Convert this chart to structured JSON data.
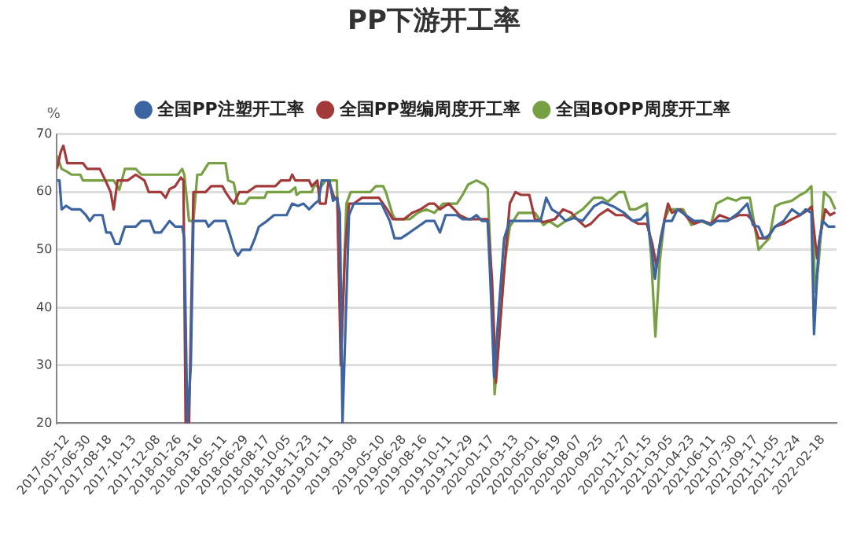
{
  "chart_data": {
    "type": "line",
    "title": "PP下游开工率",
    "ylabel": "%",
    "legend": "top",
    "grid": "y",
    "marker": "none",
    "line_style": "solid",
    "xlim": [
      "2017-04-18",
      "2022-03-22"
    ],
    "ylim": [
      20,
      70
    ],
    "yticks": [
      20,
      30,
      40,
      50,
      60,
      70
    ],
    "xticks": [
      "2017-05-12",
      "2017-06-30",
      "2017-08-18",
      "2017-10-13",
      "2017-12-08",
      "2018-01-26",
      "2018-03-16",
      "2018-05-11",
      "2018-06-29",
      "2018-08-17",
      "2018-10-05",
      "2018-11-23",
      "2019-01-11",
      "2019-03-08",
      "2019-05-10",
      "2019-06-28",
      "2019-08-16",
      "2019-10-11",
      "2019-11-29",
      "2020-01-17",
      "2020-03-13",
      "2020-05-01",
      "2020-06-19",
      "2020-08-07",
      "2020-09-25",
      "2020-11-27",
      "2021-01-15",
      "2021-03-05",
      "2021-04-23",
      "2021-06-11",
      "2021-07-30",
      "2021-09-17",
      "2021-11-05",
      "2021-12-24",
      "2022-02-18"
    ],
    "series": [
      {
        "name": "全国PP注塑开工率",
        "color": "#3c64a0",
        "x": [
          "2017-04-18",
          "2017-04-24",
          "2017-04-29",
          "2017-05-09",
          "2017-05-22",
          "2017-06-11",
          "2017-06-24",
          "2017-07-03",
          "2017-07-13",
          "2017-08-01",
          "2017-08-10",
          "2017-08-20",
          "2017-08-31",
          "2017-09-09",
          "2017-09-22",
          "2017-10-17",
          "2017-10-30",
          "2017-11-19",
          "2017-11-29",
          "2017-12-14",
          "2018-01-03",
          "2018-01-16",
          "2018-02-01",
          "2018-02-06",
          "2018-02-13",
          "2018-02-21",
          "2018-02-27",
          "2018-03-27",
          "2018-04-03",
          "2018-04-16",
          "2018-05-12",
          "2018-05-21",
          "2018-06-02",
          "2018-06-10",
          "2018-06-19",
          "2018-07-08",
          "2018-07-19",
          "2018-07-28",
          "2018-08-16",
          "2018-09-01",
          "2018-09-30",
          "2018-10-13",
          "2018-10-26",
          "2018-11-08",
          "2018-11-21",
          "2018-12-04",
          "2018-12-13",
          "2018-12-20",
          "2019-01-07",
          "2019-01-15",
          "2019-01-24",
          "2019-01-31",
          "2019-02-06",
          "2019-02-21",
          "2019-03-04",
          "2019-05-07",
          "2019-05-26",
          "2019-06-06",
          "2019-06-21",
          "2019-07-11",
          "2019-07-30",
          "2019-08-18",
          "2019-09-06",
          "2019-09-19",
          "2019-10-02",
          "2019-10-28",
          "2019-11-10",
          "2019-11-29",
          "2019-12-12",
          "2019-12-25",
          "2020-01-07",
          "2020-01-13",
          "2020-01-22",
          "2020-02-02",
          "2020-02-14",
          "2020-02-27",
          "2020-04-12",
          "2020-05-08",
          "2020-05-21",
          "2020-06-03",
          "2020-06-16",
          "2020-07-05",
          "2020-07-24",
          "2020-08-13",
          "2020-09-08",
          "2020-09-27",
          "2020-10-23",
          "2020-11-17",
          "2020-12-07",
          "2020-12-26",
          "2021-01-08",
          "2021-01-21",
          "2021-01-27",
          "2021-02-05",
          "2021-02-18",
          "2021-03-07",
          "2021-03-20",
          "2021-04-08",
          "2021-04-27",
          "2021-05-17",
          "2021-06-05",
          "2021-06-18",
          "2021-07-14",
          "2021-08-08",
          "2021-08-28",
          "2021-09-10",
          "2021-09-23",
          "2021-10-05",
          "2021-10-18",
          "2021-10-31",
          "2021-11-20",
          "2021-12-09",
          "2021-12-28",
          "2022-01-10",
          "2022-01-23",
          "2022-01-29",
          "2022-02-09",
          "2022-02-18",
          "2022-03-03",
          "2022-03-19"
        ],
        "values": [
          62,
          62,
          57,
          57.6,
          57,
          57,
          56,
          55,
          56,
          56,
          53,
          53,
          51,
          51,
          54,
          54,
          55,
          55,
          53,
          53,
          55,
          54,
          54,
          52,
          20,
          30,
          55,
          55,
          54,
          55,
          55,
          53,
          50,
          49,
          50,
          50,
          52,
          54,
          55,
          56,
          56,
          58,
          57.6,
          58,
          57,
          58,
          58.5,
          62,
          62,
          58.5,
          59,
          56.4,
          20,
          56,
          58,
          58,
          55,
          52,
          52,
          53,
          54,
          55,
          55,
          53,
          56,
          56,
          55.3,
          55.3,
          56,
          55,
          55,
          45,
          28,
          40,
          52,
          55,
          55,
          55,
          59,
          57,
          56.4,
          55,
          55.5,
          55,
          57.5,
          58.3,
          57.5,
          56.4,
          55,
          55.3,
          56.4,
          49,
          45,
          50,
          55,
          55,
          57,
          56,
          55,
          55,
          54.3,
          55,
          55,
          56.4,
          58,
          54.3,
          54,
          52,
          52.5,
          54,
          55,
          57,
          56,
          57,
          56.4,
          35.4,
          51,
          55,
          54,
          54
        ]
      },
      {
        "name": "全国PP塑编周度开工率",
        "color": "#a33a3a",
        "x": [
          "2017-04-18",
          "2017-04-27",
          "2017-05-03",
          "2017-05-12",
          "2017-06-17",
          "2017-06-27",
          "2017-07-26",
          "2017-08-08",
          "2017-08-20",
          "2017-08-27",
          "2017-09-05",
          "2017-09-28",
          "2017-10-17",
          "2017-11-06",
          "2017-11-16",
          "2017-12-14",
          "2017-12-25",
          "2018-01-03",
          "2018-01-16",
          "2018-01-29",
          "2018-02-04",
          "2018-02-09",
          "2018-02-17",
          "2018-02-27",
          "2018-03-27",
          "2018-04-09",
          "2018-05-05",
          "2018-05-12",
          "2018-05-21",
          "2018-05-31",
          "2018-06-13",
          "2018-07-02",
          "2018-07-21",
          "2018-09-04",
          "2018-09-17",
          "2018-10-07",
          "2018-10-13",
          "2018-10-20",
          "2018-11-21",
          "2018-11-27",
          "2018-12-10",
          "2018-12-16",
          "2018-12-29",
          "2019-01-05",
          "2019-01-18",
          "2019-01-25",
          "2019-02-02",
          "2019-02-12",
          "2019-02-21",
          "2019-03-04",
          "2019-03-23",
          "2019-05-01",
          "2019-05-20",
          "2019-06-02",
          "2019-06-28",
          "2019-07-17",
          "2019-08-05",
          "2019-08-25",
          "2019-09-06",
          "2019-09-19",
          "2019-10-09",
          "2019-10-22",
          "2019-11-03",
          "2019-11-23",
          "2019-12-12",
          "2019-12-25",
          "2020-01-07",
          "2020-01-17",
          "2020-01-26",
          "2020-02-05",
          "2020-02-18",
          "2020-02-27",
          "2020-03-11",
          "2020-03-24",
          "2020-04-12",
          "2020-04-25",
          "2020-05-15",
          "2020-06-10",
          "2020-06-29",
          "2020-07-18",
          "2020-07-31",
          "2020-08-19",
          "2020-09-01",
          "2020-09-20",
          "2020-10-10",
          "2020-10-29",
          "2020-11-17",
          "2020-12-07",
          "2020-12-20",
          "2021-01-08",
          "2021-01-21",
          "2021-01-31",
          "2021-02-09",
          "2021-02-26",
          "2021-03-07",
          "2021-03-26",
          "2021-04-15",
          "2021-04-27",
          "2021-05-17",
          "2021-06-05",
          "2021-06-25",
          "2021-07-20",
          "2021-08-08",
          "2021-08-28",
          "2021-09-10",
          "2021-09-23",
          "2021-10-12",
          "2021-10-31",
          "2021-11-20",
          "2021-12-09",
          "2021-12-28",
          "2022-01-17",
          "2022-01-23",
          "2022-02-05",
          "2022-02-11",
          "2022-02-24",
          "2022-03-07",
          "2022-03-19"
        ],
        "values": [
          64,
          67,
          68,
          65,
          65,
          64,
          64,
          62,
          60,
          57,
          62,
          62,
          63,
          62,
          60,
          60,
          59,
          60.5,
          61,
          62.5,
          62,
          20,
          20,
          60,
          60,
          61,
          61,
          60,
          59,
          58,
          60,
          60,
          61,
          61,
          62,
          62,
          63,
          62,
          62,
          61,
          62,
          58,
          58,
          62,
          59,
          59,
          30,
          50,
          58,
          58,
          59,
          59,
          57,
          55.3,
          55.3,
          56.4,
          57,
          58,
          58,
          57,
          58,
          57,
          56,
          55.3,
          55.3,
          55.3,
          55.3,
          45,
          27,
          37.5,
          50,
          58,
          60,
          59.5,
          59.5,
          55.3,
          54.8,
          55.3,
          57,
          56.4,
          55.3,
          54,
          54.5,
          56,
          57,
          56,
          56,
          55,
          54.5,
          54.5,
          51,
          47,
          52,
          58,
          56.4,
          57,
          55.3,
          54.5,
          55,
          54.5,
          56,
          55.3,
          56,
          56,
          55,
          52,
          52,
          54,
          54.5,
          55.3,
          56,
          57,
          57.5,
          48.5,
          52,
          57,
          56,
          56.5
        ]
      },
      {
        "name": "全国BOPP周度开工率",
        "color": "#77a043",
        "x": [
          "2017-04-18",
          "2017-04-29",
          "2017-05-12",
          "2017-05-22",
          "2017-06-11",
          "2017-06-17",
          "2017-08-27",
          "2017-09-09",
          "2017-09-22",
          "2017-10-17",
          "2017-10-30",
          "2018-01-22",
          "2018-02-01",
          "2018-02-06",
          "2018-02-17",
          "2018-02-27",
          "2018-03-08",
          "2018-03-17",
          "2018-04-03",
          "2018-05-12",
          "2018-05-18",
          "2018-05-31",
          "2018-06-10",
          "2018-06-26",
          "2018-07-06",
          "2018-08-10",
          "2018-08-16",
          "2018-10-07",
          "2018-10-20",
          "2018-10-23",
          "2018-11-01",
          "2018-11-27",
          "2018-12-04",
          "2018-12-16",
          "2018-12-29",
          "2019-01-24",
          "2019-02-03",
          "2019-02-15",
          "2019-02-25",
          "2019-04-11",
          "2019-04-24",
          "2019-05-11",
          "2019-05-17",
          "2019-06-02",
          "2019-06-08",
          "2019-07-11",
          "2019-07-30",
          "2019-08-18",
          "2019-09-06",
          "2019-09-26",
          "2019-10-28",
          "2019-11-10",
          "2019-11-23",
          "2019-12-12",
          "2019-12-31",
          "2020-01-07",
          "2020-01-13",
          "2020-01-23",
          "2020-02-02",
          "2020-02-14",
          "2020-02-27",
          "2020-03-18",
          "2020-04-25",
          "2020-05-15",
          "2020-05-28",
          "2020-06-16",
          "2020-07-05",
          "2020-07-24",
          "2020-08-13",
          "2020-09-08",
          "2020-09-27",
          "2020-10-10",
          "2020-11-05",
          "2020-11-17",
          "2020-11-30",
          "2020-12-13",
          "2020-12-26",
          "2021-01-08",
          "2021-01-18",
          "2021-01-28",
          "2021-02-07",
          "2021-02-18",
          "2021-03-01",
          "2021-04-02",
          "2021-04-21",
          "2021-05-11",
          "2021-06-05",
          "2021-06-18",
          "2021-07-14",
          "2021-08-02",
          "2021-08-15",
          "2021-09-03",
          "2021-09-12",
          "2021-09-23",
          "2021-10-05",
          "2021-10-18",
          "2021-10-31",
          "2021-11-13",
          "2021-12-09",
          "2021-12-28",
          "2022-01-10",
          "2022-01-23",
          "2022-02-01",
          "2022-02-09",
          "2022-02-21",
          "2022-03-07",
          "2022-03-19"
        ],
        "values": [
          66.3,
          64,
          63.5,
          63,
          63,
          62,
          62,
          60.4,
          64,
          64,
          63,
          63,
          64,
          63,
          55,
          55,
          63,
          63,
          65,
          65,
          62,
          61.6,
          58,
          58,
          59,
          59,
          60,
          60,
          60.8,
          59.5,
          60,
          60,
          61.3,
          60.6,
          62,
          62,
          32,
          58,
          60,
          60,
          61,
          61,
          60,
          56,
          55.3,
          55.3,
          56.4,
          57,
          56.4,
          58,
          58,
          59.5,
          61.3,
          62,
          61.3,
          60.6,
          50,
          25,
          34.4,
          47,
          54,
          56.4,
          56.4,
          54.3,
          55,
          54,
          55,
          56,
          57,
          59,
          59,
          58.3,
          60,
          60,
          57,
          57,
          57.5,
          58,
          49,
          35,
          48,
          55.3,
          57,
          57,
          54.3,
          55,
          54.3,
          58,
          59,
          58.5,
          59,
          59,
          55,
          50,
          51,
          52,
          57.5,
          58,
          58.5,
          59.5,
          60,
          61,
          42.7,
          48,
          60,
          59,
          57
        ]
      }
    ]
  }
}
